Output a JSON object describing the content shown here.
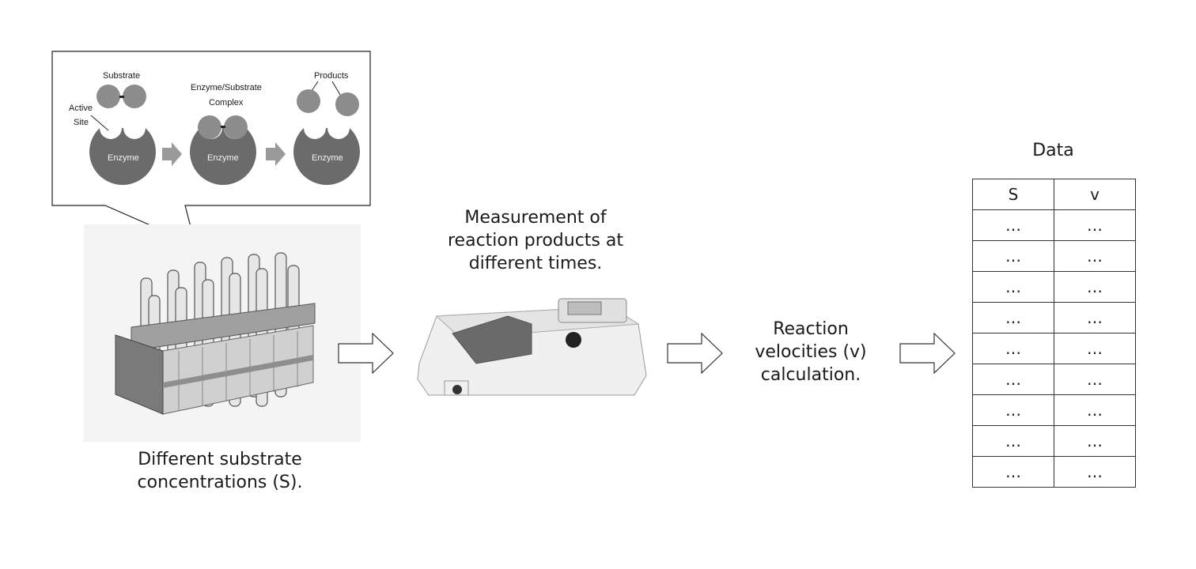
{
  "bubble": {
    "substrate_label": "Substrate",
    "active_site_label_1": "Active",
    "active_site_label_2": "Site",
    "complex_label_1": "Enzyme/Substrate",
    "complex_label_2": "Complex",
    "products_label": "Products",
    "enzyme_label": "Enzyme"
  },
  "captions": {
    "substrate_line1": "Different substrate",
    "substrate_line2": "concentrations (S).",
    "measurement_line1": "Measurement of",
    "measurement_line2": "reaction products at",
    "measurement_line3": "different times.",
    "velocity_line1": "Reaction",
    "velocity_line2": "velocities (v)",
    "velocity_line3": "calculation."
  },
  "table": {
    "title": "Data",
    "headers": [
      "S",
      "v"
    ],
    "rows": [
      [
        "…",
        "…"
      ],
      [
        "…",
        "…"
      ],
      [
        "…",
        "…"
      ],
      [
        "…",
        "…"
      ],
      [
        "…",
        "…"
      ],
      [
        "…",
        "…"
      ],
      [
        "…",
        "…"
      ],
      [
        "…",
        "…"
      ],
      [
        "…",
        "…"
      ]
    ]
  },
  "colors": {
    "enzyme_fill": "#6b6b6b",
    "substrate_fill": "#8c8c8c",
    "arrow_fill": "#9a9a9a"
  }
}
